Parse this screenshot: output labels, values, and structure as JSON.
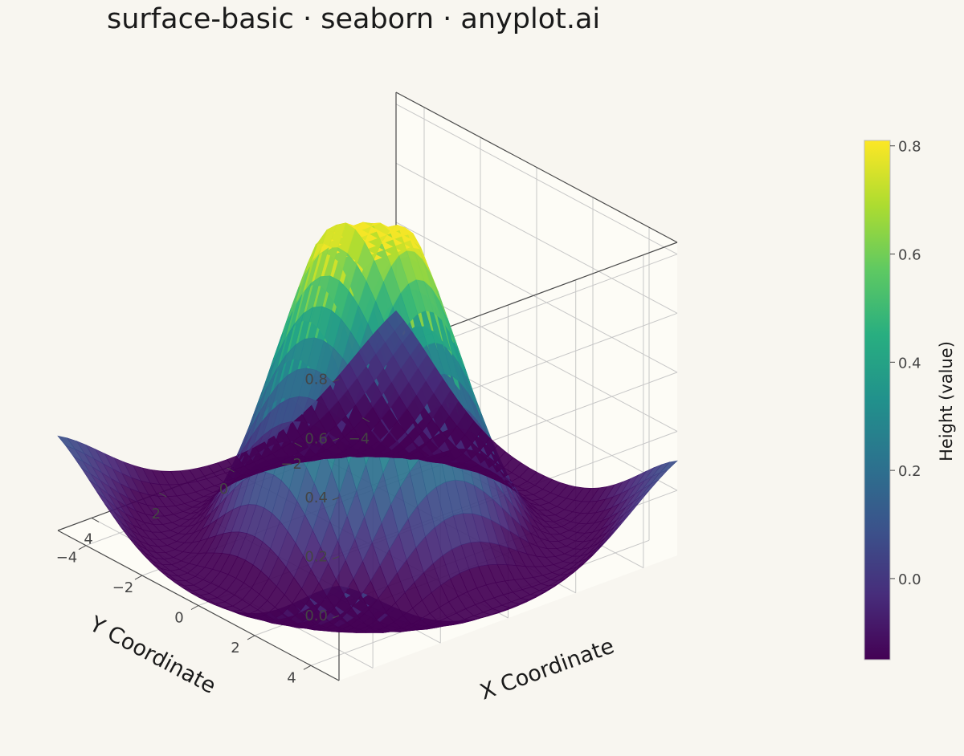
{
  "title": "surface-basic · seaborn · anyplot.ai",
  "chart_data": {
    "type": "surface3d",
    "title": "surface-basic · seaborn · anyplot.ai",
    "function": "sin(sqrt(x^2+y^2)) / sqrt(x^2+y^2)",
    "x": {
      "label": "X Coordinate",
      "range": [
        -5,
        5
      ],
      "ticks": [
        -4,
        -2,
        0,
        2,
        4
      ],
      "tick_labels": [
        "−4",
        "−2",
        "0",
        "2",
        "4"
      ]
    },
    "y": {
      "label": "Y Coordinate",
      "range": [
        -5,
        5
      ],
      "ticks": [
        -4,
        -2,
        0,
        2,
        4
      ],
      "tick_labels": [
        "−4",
        "−2",
        "0",
        "2",
        "4"
      ]
    },
    "z": {
      "ticks": [
        0.0,
        0.2,
        0.4,
        0.6,
        0.8
      ],
      "tick_labels": [
        "0.0",
        "0.2",
        "0.4",
        "0.6",
        "0.8"
      ],
      "range": [
        -0.22,
        0.84
      ]
    },
    "colorbar": {
      "label": "Height (value)",
      "ticks": [
        0.0,
        0.2,
        0.4,
        0.6,
        0.8
      ],
      "tick_labels": [
        "0.0",
        "0.2",
        "0.4",
        "0.6",
        "0.8"
      ],
      "range": [
        -0.15,
        0.81
      ],
      "colormap": "viridis"
    },
    "grid": true,
    "colors": {
      "background": "#f8f6f0",
      "pane": "#fdfcf6",
      "grid": "#c7c7c7",
      "edge": "#4a4a4a"
    }
  }
}
